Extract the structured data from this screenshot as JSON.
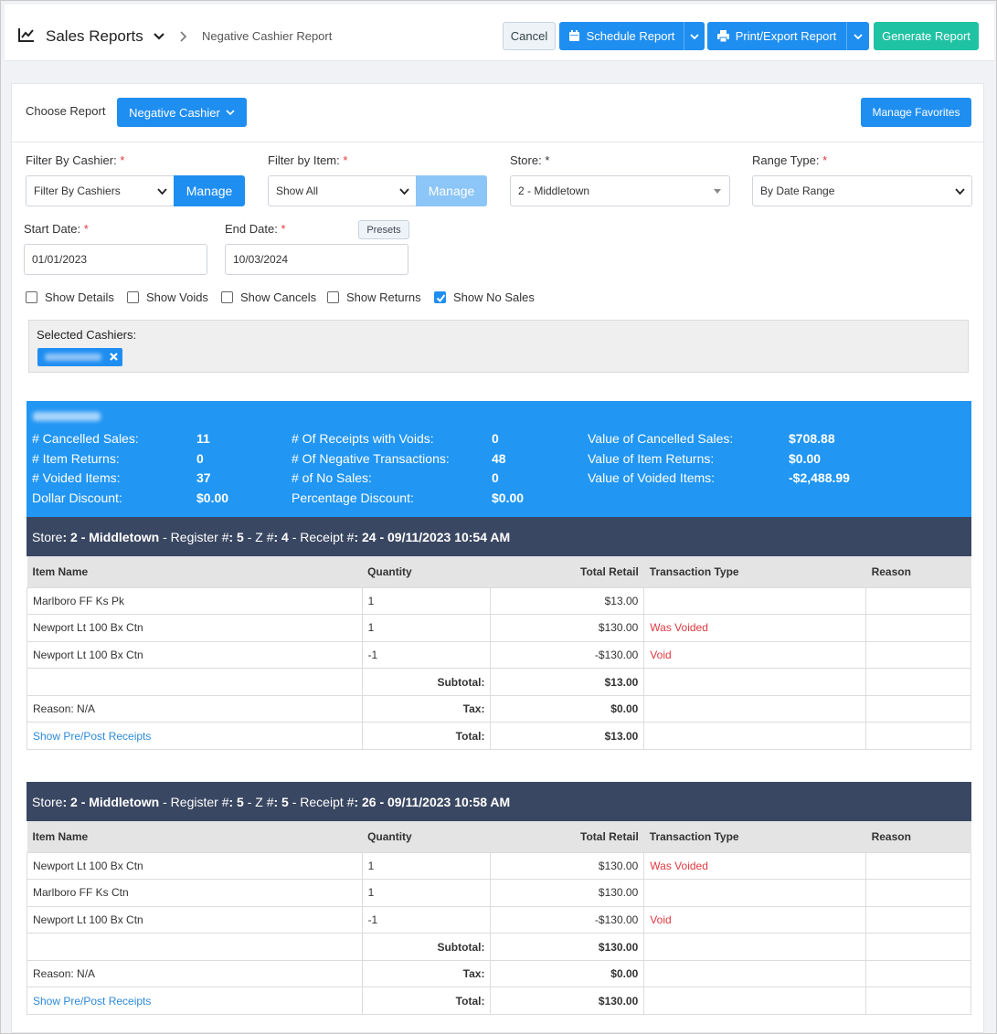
{
  "header": {
    "title": "Sales Reports",
    "breadcrumb": "Negative Cashier Report",
    "cancel": "Cancel",
    "schedule": "Schedule Report",
    "print": "Print/Export Report",
    "generate": "Generate Report"
  },
  "report": {
    "choose_label": "Choose Report",
    "selected": "Negative Cashier",
    "favorites": "Manage Favorites"
  },
  "filters": {
    "cashier_label": "Filter By Cashier:",
    "cashier_value": "Filter By Cashiers",
    "item_label": "Filter by Item:",
    "item_value": "Show All",
    "manage": "Manage",
    "store_label": "Store:",
    "store_value": "2 - Middletown",
    "range_label": "Range Type:",
    "range_value": "By Date Range",
    "start_label": "Start Date:",
    "start_value": "01/01/2023",
    "end_label": "End Date:",
    "end_value": "10/03/2024",
    "presets": "Presets",
    "required": "*"
  },
  "checkboxes": [
    {
      "label": "Show Details",
      "checked": false
    },
    {
      "label": "Show Voids",
      "checked": false
    },
    {
      "label": "Show Cancels",
      "checked": false
    },
    {
      "label": "Show Returns",
      "checked": false
    },
    {
      "label": "Show No Sales",
      "checked": true
    }
  ],
  "selected_cashiers_label": "Selected Cashiers:",
  "summary": {
    "col1": [
      {
        "label": "# Cancelled Sales:",
        "value": "11"
      },
      {
        "label": "# Item Returns:",
        "value": "0"
      },
      {
        "label": "# Voided Items:",
        "value": "37"
      },
      {
        "label": "Dollar Discount:",
        "value": "$0.00"
      }
    ],
    "col2": [
      {
        "label": "# Of Receipts with Voids:",
        "value": "0"
      },
      {
        "label": "# Of Negative Transactions:",
        "value": "48"
      },
      {
        "label": "# of No Sales:",
        "value": "0"
      },
      {
        "label": "Percentage Discount:",
        "value": "$0.00"
      }
    ],
    "col3": [
      {
        "label": "Value of Cancelled Sales:",
        "value": "$708.88"
      },
      {
        "label": "Value of Item Returns:",
        "value": "$0.00"
      },
      {
        "label": "Value of Voided Items:",
        "value": "-$2,488.99"
      }
    ]
  },
  "table_headers": {
    "item": "Item Name",
    "qty": "Quantity",
    "retail": "Total Retail",
    "type": "Transaction Type",
    "reason": "Reason"
  },
  "receipts": [
    {
      "store_prefix": "Store",
      "store": ": 2 - Middletown",
      "register_prefix": " - Register #",
      "register": ": 5",
      "z_prefix": " - Z #",
      "z": ": 4",
      "receipt_prefix": " - Receipt #",
      "receipt": ": 24 - 09/11/2023 10:54 AM",
      "items": [
        {
          "name": "Marlboro FF Ks Pk",
          "qty": "1",
          "retail": "$13.00",
          "type": ""
        },
        {
          "name": "Newport Lt 100 Bx Ctn",
          "qty": "1",
          "retail": "$130.00",
          "type": "Was Voided"
        },
        {
          "name": "Newport Lt 100 Bx Ctn",
          "qty": "-1",
          "retail": "-$130.00",
          "type": "Void"
        }
      ],
      "subtotal_label": "Subtotal:",
      "subtotal": "$13.00",
      "reason_label": "Reason:",
      "reason": " N/A",
      "tax_label": "Tax:",
      "tax": "$0.00",
      "link": "Show Pre/Post Receipts",
      "total_label": "Total:",
      "total": "$13.00"
    },
    {
      "store_prefix": "Store",
      "store": ": 2 - Middletown",
      "register_prefix": " - Register #",
      "register": ": 5",
      "z_prefix": " - Z #",
      "z": ": 5",
      "receipt_prefix": " - Receipt #",
      "receipt": ": 26 - 09/11/2023 10:58 AM",
      "items": [
        {
          "name": "Newport Lt 100 Bx Ctn",
          "qty": "1",
          "retail": "$130.00",
          "type": "Was Voided"
        },
        {
          "name": "Marlboro FF Ks Ctn",
          "qty": "1",
          "retail": "$130.00",
          "type": ""
        },
        {
          "name": "Newport Lt 100 Bx Ctn",
          "qty": "-1",
          "retail": "-$130.00",
          "type": "Void"
        }
      ],
      "subtotal_label": "Subtotal:",
      "subtotal": "$130.00",
      "reason_label": "Reason:",
      "reason": " N/A",
      "tax_label": "Tax:",
      "tax": "$0.00",
      "link": "Show Pre/Post Receipts",
      "total_label": "Total:",
      "total": "$130.00"
    }
  ],
  "colors": {
    "accent": "#1f8ef1",
    "success": "#1fc2a3",
    "summary_bg": "#2196f3",
    "receipt_header": "#3a4762",
    "danger": "#e0383e",
    "link": "#2d8ad9"
  },
  "icons": {
    "title": "line-chart-icon",
    "schedule": "calendar-icon",
    "print": "printer-icon"
  }
}
